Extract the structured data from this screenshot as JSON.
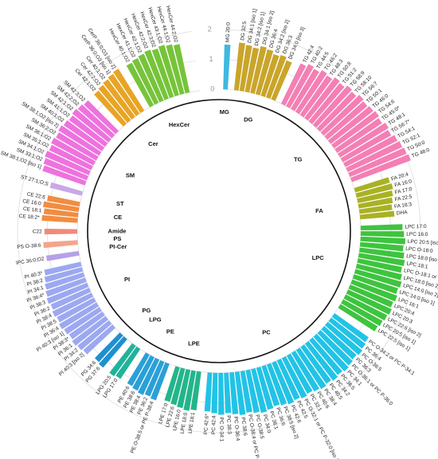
{
  "chart_data": {
    "type": "circular-bar",
    "rlim": [
      0,
      2
    ],
    "rticks": [
      0,
      1,
      2
    ],
    "series": [
      {
        "name": "MG",
        "color": "#3fb8e0",
        "categories": [
          "MG 20:0"
        ],
        "values": [
          1.5
        ]
      },
      {
        "name": "DG",
        "color": "#c9a52a",
        "categories": [
          "DG 32:5",
          "DG 34:1 [iso 1]",
          "DG 34:2 [iso 1]",
          "DG 34:1 [iso 2]",
          "DG 36:4",
          "DG 34:2 [iso 2]",
          "DG 36:3",
          "DG 34:0 [iso 3]"
        ],
        "values": [
          1.6,
          1.55,
          1.5,
          1.6,
          1.55,
          1.45,
          1.5,
          1.4
        ]
      },
      {
        "name": "TG",
        "color": "#f47fb4",
        "categories": [
          "TG 42:4",
          "TG 40:2",
          "TG 44:5",
          "TG 46:2",
          "TG 48:3",
          "TG 50:8",
          "TG 51:2",
          "TG 58:9",
          "TG 58:10",
          "TG 56:7",
          "TG 50:1",
          "TG 46:0",
          "TG 54:6",
          "TG 45:0*",
          "TG 48:1",
          "TG 56:7*",
          "TG 54:1",
          "TG 52:1",
          "TG 50:0",
          "TG 48:0"
        ],
        "values": [
          1.5,
          1.6,
          1.55,
          1.65,
          1.6,
          1.7,
          1.65,
          1.75,
          1.7,
          1.8,
          1.75,
          1.8,
          1.85,
          1.8,
          1.9,
          1.85,
          1.95,
          2.0,
          2.05,
          2.1
        ]
      },
      {
        "name": "FA",
        "color": "#a9b223",
        "categories": [
          "FA 20:4",
          "FA 16:0",
          "FA 17:0",
          "FA 22:5",
          "FA 18:3",
          "DHA"
        ],
        "values": [
          1.2,
          1.25,
          1.2,
          1.15,
          1.1,
          1.15
        ]
      },
      {
        "name": "LPC",
        "color": "#3ec43e",
        "categories": [
          "LPC 17:0",
          "LPC 16:0",
          "LPC 20:5 [iso 3]",
          "LPC O-18:0",
          "LPC 18:0 [iso 1]",
          "LPC 18:1",
          "LPC O-18:1 or LPC P-18:0",
          "LPC 18:0 [iso 2]",
          "LPC 14:0 [iso 2]",
          "LPC 14:0 [iso 1]",
          "LPC 16:1",
          "LPC 20:4",
          "LPC 20:3",
          "LPC 22:6 [iso 2]",
          "LPC 20:5 [iso 1]",
          "LPC 22:5 [iso 1]"
        ],
        "values": [
          1.4,
          1.45,
          1.5,
          1.45,
          1.5,
          1.55,
          1.5,
          1.55,
          1.6,
          1.55,
          1.6,
          1.55,
          1.6,
          1.55,
          1.5,
          1.45
        ]
      },
      {
        "name": "PC",
        "color": "#22c3e6",
        "categories": [
          "PC O-34:2 or PC P-34:1",
          "PC 36:4",
          "PC O-36:5",
          "PC 36:3",
          "PC O-36:1 or PC P-36:0",
          "PC 34:1",
          "PC 36:5",
          "PC 34:2",
          "PC 40:5",
          "PC 38:4",
          "PC 40:6",
          "PC 32:1",
          "PC O-32:1 or PC P-32:0 [iso 1]",
          "PC 42:5",
          "PC 42:6",
          "PC 38:5 [iso 2]",
          "PC 36:6",
          "PC 36:1",
          "PC 34:0",
          "PC O-38:5",
          "PC O-38:4 or PC P-38:3",
          "PC 38:6",
          "PC O-36:4",
          "PC 38:3",
          "PC O-34:1",
          "PC 42:4",
          "PC 42:6*"
        ],
        "values": [
          1.4,
          1.45,
          1.5,
          1.45,
          1.5,
          1.55,
          1.5,
          1.55,
          1.5,
          1.55,
          1.5,
          1.45,
          1.5,
          1.45,
          1.5,
          1.45,
          1.4,
          1.45,
          1.5,
          1.45,
          1.4,
          1.45,
          1.4,
          1.35,
          1.4,
          1.35,
          1.3
        ]
      },
      {
        "name": "LPE",
        "color": "#23b58b",
        "categories": [
          "LPE 18:1",
          "LPE 18:0",
          "LPE 16:0",
          "LPE 22:6",
          "LPE 17:0"
        ],
        "values": [
          1.3,
          1.35,
          1.3,
          1.25,
          1.2
        ]
      },
      {
        "name": "PE",
        "color": "#2aa0d8",
        "categories": [
          "PE O-38:5 or PE P-38:4",
          "PE 36:2",
          "PE 38:4",
          "PE 38:6",
          "PE 40:6"
        ],
        "values": [
          1.3,
          1.25,
          1.3,
          1.25,
          1.2
        ]
      },
      {
        "name": "LPG",
        "color": "#20b39a",
        "categories": [
          "LPG 17:0",
          "LPG 20:5"
        ],
        "values": [
          1.2,
          1.25
        ]
      },
      {
        "name": "PG",
        "color": "#1e90d0",
        "categories": [
          "PG 37:6",
          "PG 34:6"
        ],
        "values": [
          1.25,
          1.2
        ]
      },
      {
        "name": "PI",
        "color": "#9ca8f0",
        "categories": [
          "PI 40:3 [iso 2]",
          "PI 34:2",
          "PI 36:1",
          "PI 38:3*",
          "PI 40:3 [iso 1]",
          "PI 36:4",
          "PI 38:5",
          "PI 38:4",
          "PI 36:2",
          "PI 38:3",
          "PI 36:4*",
          "PI 34:1",
          "PI 38:2",
          "PI 40:3*"
        ],
        "values": [
          1.3,
          1.35,
          1.4,
          1.35,
          1.4,
          1.45,
          1.4,
          1.45,
          1.4,
          1.45,
          1.4,
          1.35,
          1.3,
          1.25
        ]
      },
      {
        "name": "PI-Cer",
        "color": "#b6a0e8",
        "categories": [
          "IPC 36:0;O2"
        ],
        "values": [
          1.1
        ]
      },
      {
        "name": "PS",
        "color": "#f4a58c",
        "categories": [
          "PS O-38:6"
        ],
        "values": [
          1.15
        ]
      },
      {
        "name": "Amide",
        "color": "#f08a7a",
        "categories": [
          "C22"
        ],
        "values": [
          1.1
        ]
      },
      {
        "name": "CE",
        "color": "#f28c40",
        "categories": [
          "CE 18:2*",
          "CE 18:1",
          "CE 16:0",
          "CE 22:6"
        ],
        "values": [
          1.2,
          1.15,
          1.2,
          1.1
        ]
      },
      {
        "name": "ST",
        "color": "#c8a8e8",
        "categories": [
          "ST 27:1;O;S"
        ],
        "values": [
          1.1
        ]
      },
      {
        "name": "SM",
        "color": "#ee72de",
        "categories": [
          "SM 38:1;O2 [iso 1]",
          "SM 33:1;O2",
          "SM 34:1;O2",
          "SM 35:1;O2",
          "SM 36:1;O2",
          "SM 36:2;O2",
          "SM 38:1;O2 [iso 2]",
          "SM 40:1;O2",
          "SM 41:1;O2",
          "SM 42:1;O2",
          "SM 42:2;O2",
          "SM 42:3;O2"
        ],
        "values": [
          1.5,
          1.55,
          1.6,
          1.55,
          1.6,
          1.55,
          1.6,
          1.55,
          1.5,
          1.55,
          1.5,
          1.45
        ]
      },
      {
        "name": "Cer",
        "color": "#e8a424",
        "categories": [
          "Cer 42:1;O2",
          "Cer 42:2;O2",
          "Cer 40:1;O2",
          "CerP 36:0;O3 [iso 1]",
          "CerP 36:0;O3 [iso 2]"
        ],
        "values": [
          1.45,
          1.5,
          1.55,
          1.6,
          1.65
        ]
      },
      {
        "name": "HexCer",
        "color": "#76c43a",
        "categories": [
          "HexCer 40:1;O2",
          "HexCer 41:1;O2",
          "HexCer 42:1;O2",
          "HexCer 42:2;O2",
          "HexCer 42:3;O2",
          "HexCer 43:1;O2",
          "HexCer 44:1;O2",
          "HexCer 44:2;O2"
        ],
        "values": [
          1.6,
          1.65,
          1.7,
          1.75,
          1.7,
          1.75,
          1.7,
          1.65
        ]
      }
    ]
  }
}
